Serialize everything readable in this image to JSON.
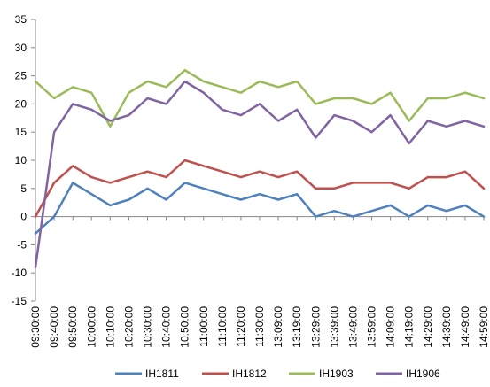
{
  "chart_data": {
    "type": "line",
    "title": "",
    "xlabel": "",
    "ylabel": "",
    "ylim": [
      -15,
      35
    ],
    "yticks": [
      -15,
      -10,
      -5,
      0,
      5,
      10,
      15,
      20,
      25,
      30,
      35
    ],
    "grid": false,
    "legend": "bottom",
    "x": [
      "09:30:00",
      "09:40:00",
      "09:50:00",
      "10:00:00",
      "10:10:00",
      "10:20:00",
      "10:30:00",
      "10:40:00",
      "10:50:00",
      "11:00:00",
      "11:10:00",
      "11:20:00",
      "11:30:00",
      "13:09:00",
      "13:19:00",
      "13:29:00",
      "13:39:00",
      "13:49:00",
      "13:59:00",
      "14:09:00",
      "14:19:00",
      "14:29:00",
      "14:39:00",
      "14:49:00",
      "14:59:00"
    ],
    "series": [
      {
        "name": "IH1811",
        "color": "#4F81BD",
        "values": [
          -3,
          0,
          6,
          4,
          2,
          3,
          5,
          3,
          6,
          5,
          4,
          3,
          4,
          3,
          4,
          0,
          1,
          0,
          1,
          2,
          0,
          2,
          1,
          2,
          0
        ]
      },
      {
        "name": "IH1812",
        "color": "#C0504D",
        "values": [
          0,
          6,
          9,
          7,
          6,
          7,
          8,
          7,
          10,
          9,
          8,
          7,
          8,
          7,
          8,
          5,
          5,
          6,
          6,
          6,
          5,
          7,
          7,
          8,
          5
        ]
      },
      {
        "name": "IH1903",
        "color": "#9BBB59",
        "values": [
          24,
          21,
          23,
          22,
          16,
          22,
          24,
          23,
          26,
          24,
          23,
          22,
          24,
          23,
          24,
          20,
          21,
          21,
          20,
          22,
          17,
          21,
          21,
          22,
          21
        ]
      },
      {
        "name": "IH1906",
        "color": "#8064A2",
        "values": [
          -9,
          15,
          20,
          19,
          17,
          18,
          21,
          20,
          24,
          22,
          19,
          18,
          20,
          17,
          19,
          14,
          18,
          17,
          15,
          18,
          13,
          17,
          16,
          17,
          16
        ]
      }
    ]
  }
}
